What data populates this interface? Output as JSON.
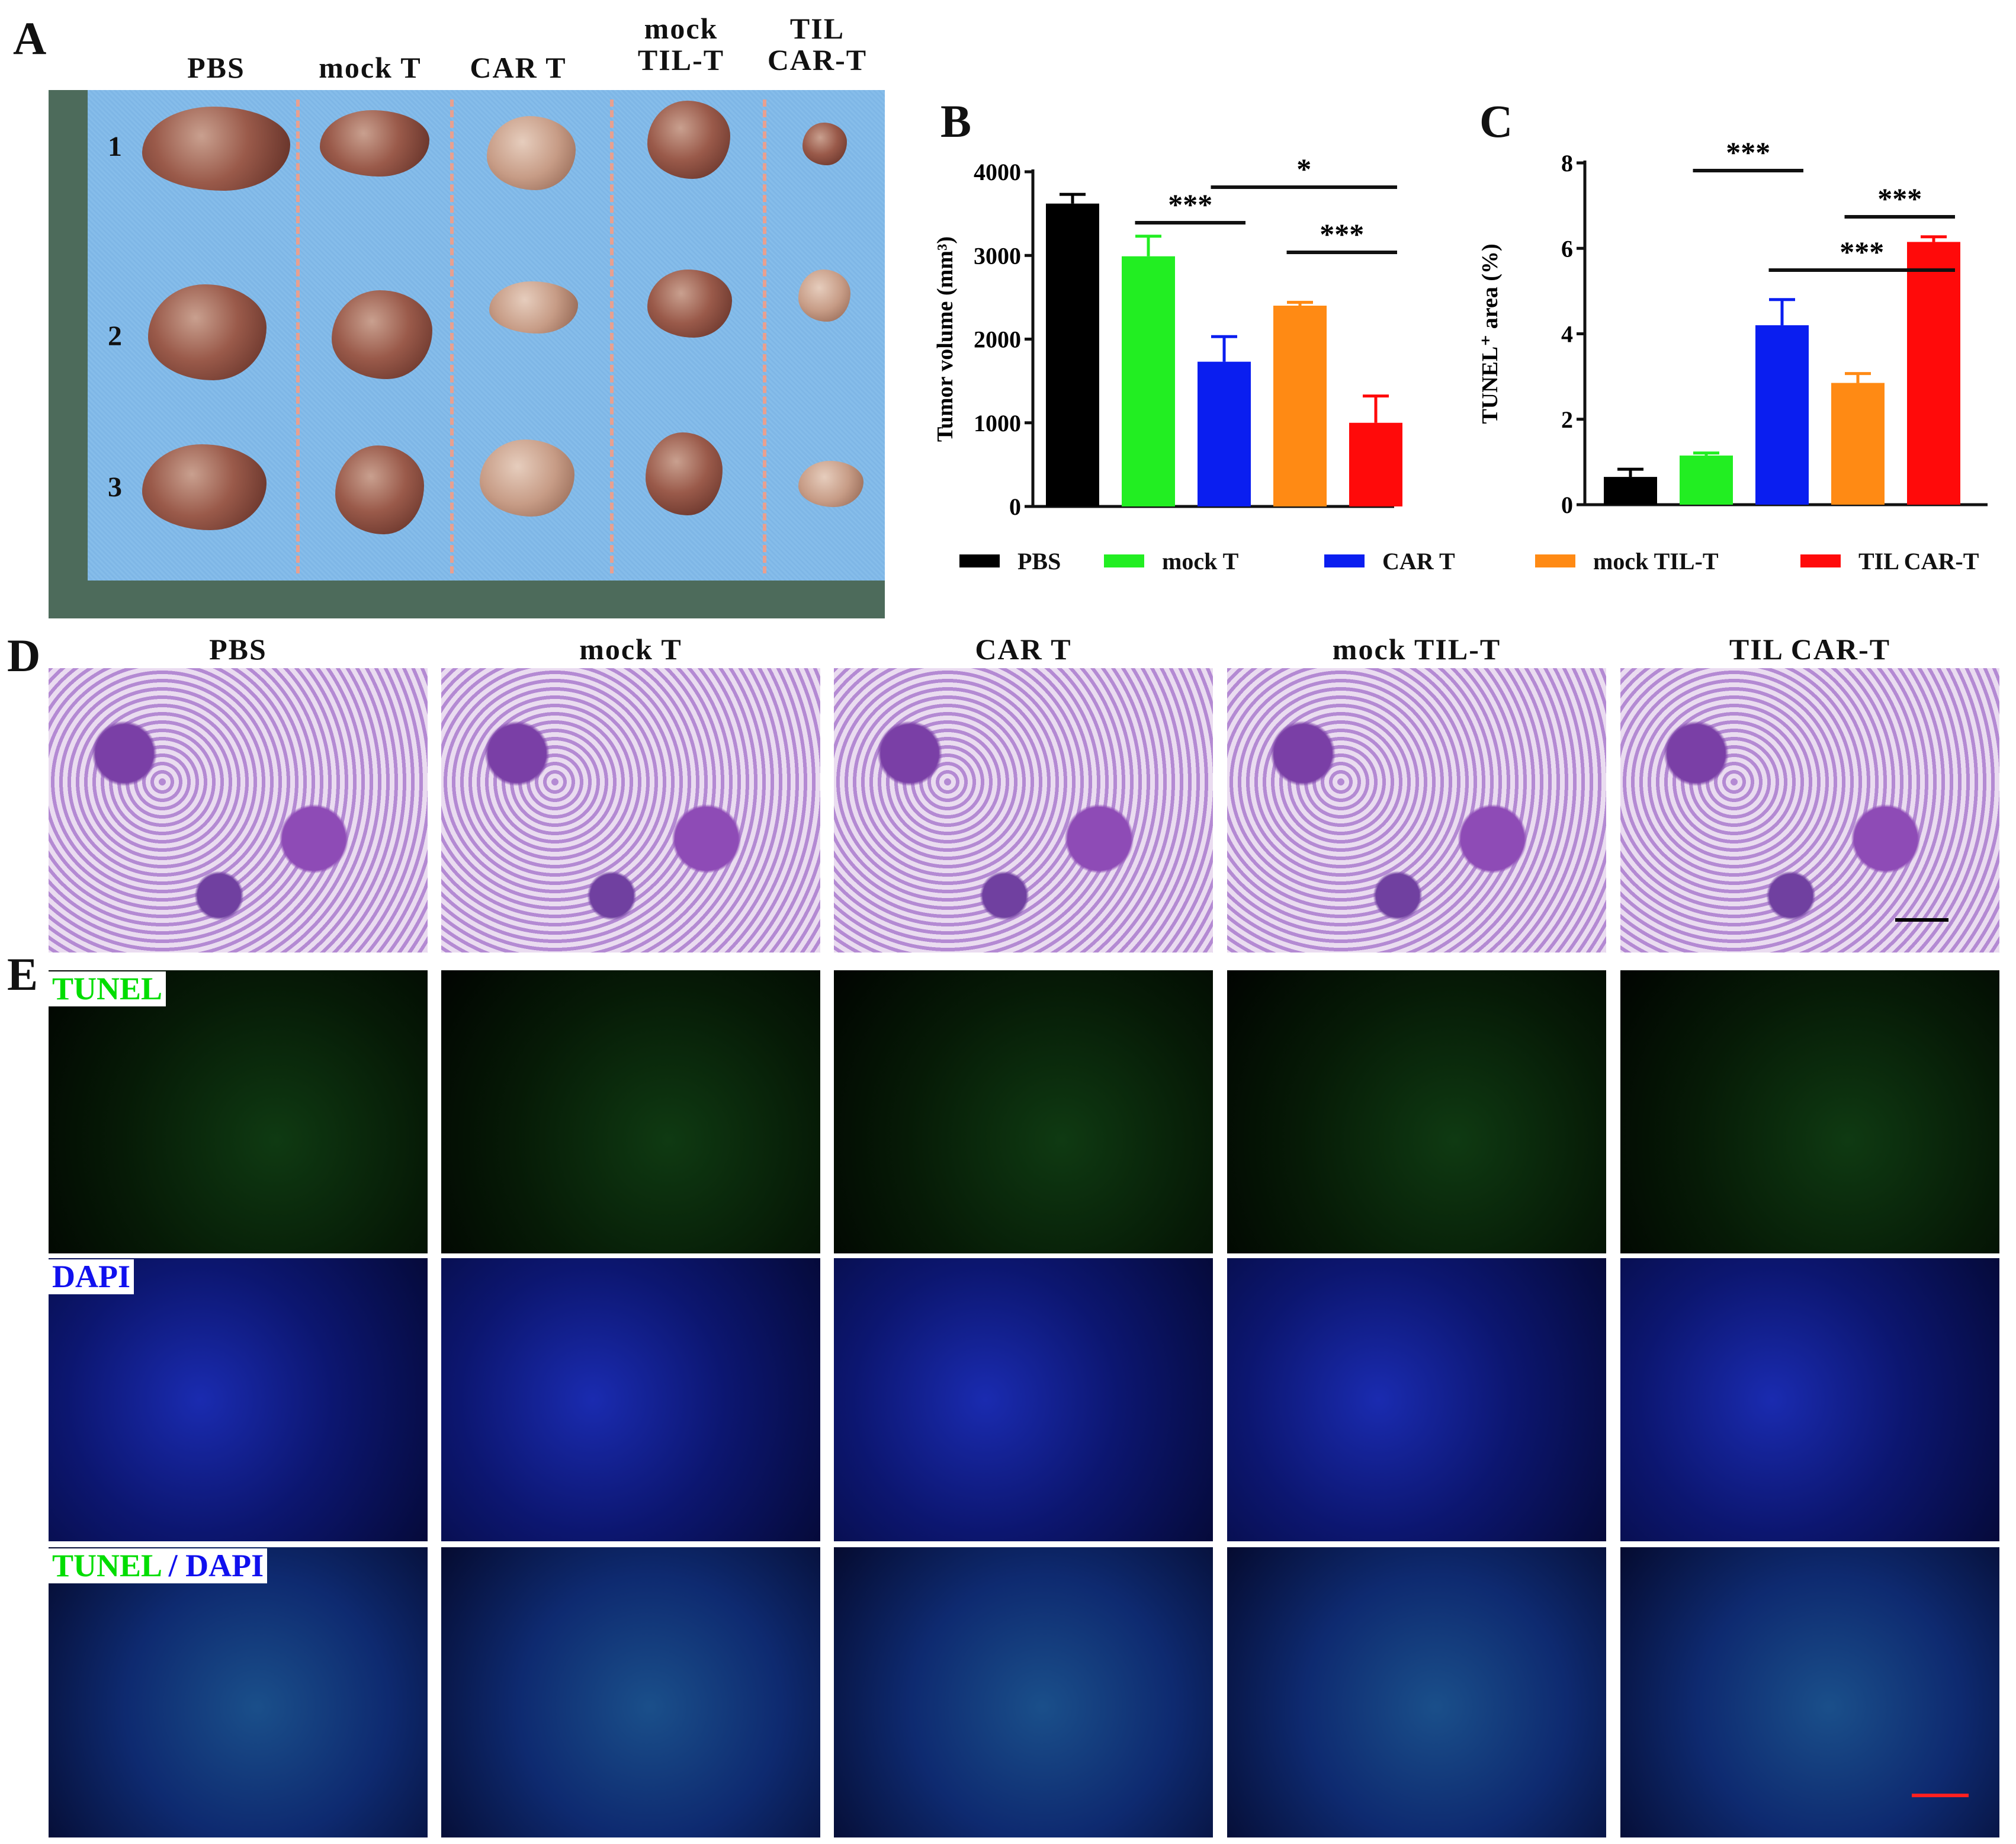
{
  "panel_letters": {
    "a": "A",
    "b": "B",
    "c": "C",
    "d": "D",
    "e": "E"
  },
  "panel_a": {
    "groups": [
      "PBS",
      "mock T",
      "CAR T",
      "mock\nTIL-T",
      "TIL\nCAR-T"
    ],
    "rows": [
      "1",
      "2",
      "3"
    ]
  },
  "legend": [
    {
      "label": "PBS",
      "color": "#000000"
    },
    {
      "label": "mock T",
      "color": "#22ee22"
    },
    {
      "label": "CAR T",
      "color": "#0a1ef0"
    },
    {
      "label": "mock TIL-T",
      "color": "#ff8a14"
    },
    {
      "label": "TIL CAR-T",
      "color": "#ff0a0a"
    }
  ],
  "panel_d": {
    "groups": [
      "PBS",
      "mock T",
      "CAR T",
      "mock TIL-T",
      "TIL CAR-T"
    ]
  },
  "panel_e": {
    "channels": {
      "tunel": "TUNEL",
      "dapi": "DAPI",
      "merge_tunel": "TUNEL",
      "merge_sep": " / ",
      "merge_dapi": "DAPI"
    }
  },
  "colors": {
    "tunel_green": "#00ff00",
    "dapi_blue": "#0000ff",
    "scale_black": "#000000",
    "scale_red": "#ff2020"
  },
  "chart_data": [
    {
      "id": "B",
      "type": "bar",
      "categories": [
        "PBS",
        "mock T",
        "CAR T",
        "mock TIL-T",
        "TIL CAR-T"
      ],
      "values": [
        3620,
        2990,
        1730,
        2400,
        1000
      ],
      "errors": [
        110,
        240,
        300,
        40,
        320
      ],
      "colors": [
        "#000000",
        "#22ee22",
        "#0a1ef0",
        "#ff8a14",
        "#ff0a0a"
      ],
      "ylabel": "Tumor volume (mm³)",
      "ylim": [
        0,
        4000
      ],
      "yticks": [
        0,
        1000,
        2000,
        3000,
        4000
      ],
      "significance": [
        {
          "from": 1,
          "to": 2,
          "label": "***"
        },
        {
          "from": 2,
          "to": 4,
          "label": "*"
        },
        {
          "from": 3,
          "to": 4,
          "label": "***"
        }
      ]
    },
    {
      "id": "C",
      "type": "bar",
      "categories": [
        "PBS",
        "mock T",
        "CAR T",
        "mock TIL-T",
        "TIL CAR-T"
      ],
      "values": [
        0.65,
        1.15,
        4.2,
        2.85,
        6.15
      ],
      "errors": [
        0.18,
        0.06,
        0.6,
        0.22,
        0.12
      ],
      "colors": [
        "#000000",
        "#22ee22",
        "#0a1ef0",
        "#ff8a14",
        "#ff0a0a"
      ],
      "ylabel": "TUNEL⁺ area (%)",
      "ylim": [
        0,
        8
      ],
      "yticks": [
        0,
        2,
        4,
        6,
        8
      ],
      "significance": [
        {
          "from": 2,
          "to": 4,
          "label": "***"
        },
        {
          "from": 1,
          "to": 2,
          "label": "***"
        },
        {
          "from": 3,
          "to": 4,
          "label": "***"
        }
      ]
    }
  ]
}
